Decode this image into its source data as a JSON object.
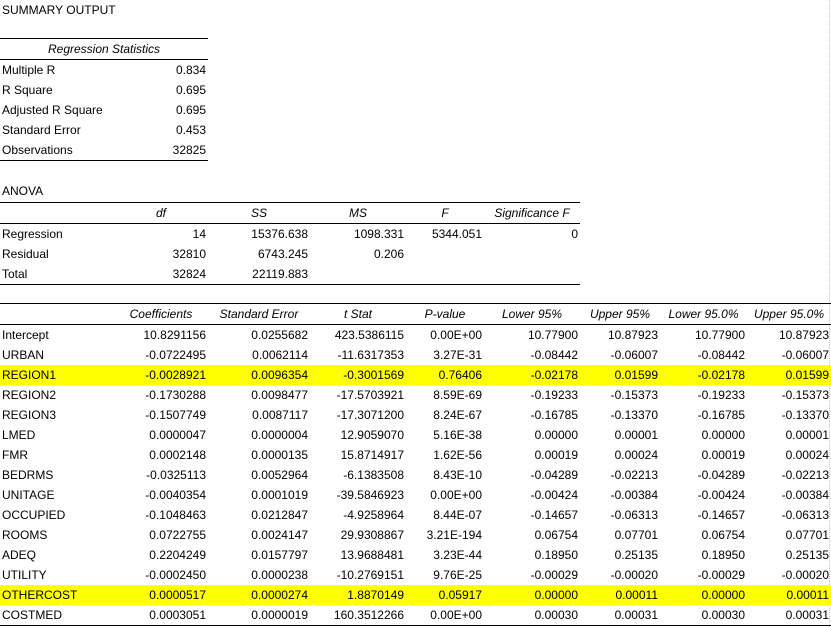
{
  "title": "SUMMARY OUTPUT",
  "regression_statistics": {
    "header": "Regression Statistics",
    "rows": [
      {
        "label": "Multiple R",
        "value": "0.834"
      },
      {
        "label": "R Square",
        "value": "0.695"
      },
      {
        "label": "Adjusted R Square",
        "value": "0.695"
      },
      {
        "label": "Standard Error",
        "value": "0.453"
      },
      {
        "label": "Observations",
        "value": "32825"
      }
    ]
  },
  "anova": {
    "label": "ANOVA",
    "headers": [
      "",
      "df",
      "SS",
      "MS",
      "F",
      "Significance F"
    ],
    "rows": [
      [
        "Regression",
        "14",
        "15376.638",
        "1098.331",
        "5344.051",
        "0"
      ],
      [
        "Residual",
        "32810",
        "6743.245",
        "0.206",
        "",
        ""
      ],
      [
        "Total",
        "32824",
        "22119.883",
        "",
        "",
        ""
      ]
    ]
  },
  "coefficients": {
    "headers": [
      "",
      "Coefficients",
      "Standard Error",
      "t Stat",
      "P-value",
      "Lower 95%",
      "Upper 95%",
      "Lower 95.0%",
      "Upper 95.0%"
    ],
    "rows": [
      {
        "cells": [
          "Intercept",
          "10.8291156",
          "0.0255682",
          "423.5386115",
          "0.00E+00",
          "10.77900",
          "10.87923",
          "10.77900",
          "10.87923"
        ],
        "highlight": false
      },
      {
        "cells": [
          "URBAN",
          "-0.0722495",
          "0.0062114",
          "-11.6317353",
          "3.27E-31",
          "-0.08442",
          "-0.06007",
          "-0.08442",
          "-0.06007"
        ],
        "highlight": false
      },
      {
        "cells": [
          "REGION1",
          "-0.0028921",
          "0.0096354",
          "-0.3001569",
          "0.76406",
          "-0.02178",
          "0.01599",
          "-0.02178",
          "0.01599"
        ],
        "highlight": true
      },
      {
        "cells": [
          "REGION2",
          "-0.1730288",
          "0.0098477",
          "-17.5703921",
          "8.59E-69",
          "-0.19233",
          "-0.15373",
          "-0.19233",
          "-0.15373"
        ],
        "highlight": false
      },
      {
        "cells": [
          "REGION3",
          "-0.1507749",
          "0.0087117",
          "-17.3071200",
          "8.24E-67",
          "-0.16785",
          "-0.13370",
          "-0.16785",
          "-0.13370"
        ],
        "highlight": false
      },
      {
        "cells": [
          "LMED",
          "0.0000047",
          "0.0000004",
          "12.9059070",
          "5.16E-38",
          "0.00000",
          "0.00001",
          "0.00000",
          "0.00001"
        ],
        "highlight": false
      },
      {
        "cells": [
          "FMR",
          "0.0002148",
          "0.0000135",
          "15.8714917",
          "1.62E-56",
          "0.00019",
          "0.00024",
          "0.00019",
          "0.00024"
        ],
        "highlight": false
      },
      {
        "cells": [
          "BEDRMS",
          "-0.0325113",
          "0.0052964",
          "-6.1383508",
          "8.43E-10",
          "-0.04289",
          "-0.02213",
          "-0.04289",
          "-0.02213"
        ],
        "highlight": false
      },
      {
        "cells": [
          "UNITAGE",
          "-0.0040354",
          "0.0001019",
          "-39.5846923",
          "0.00E+00",
          "-0.00424",
          "-0.00384",
          "-0.00424",
          "-0.00384"
        ],
        "highlight": false
      },
      {
        "cells": [
          "OCCUPIED",
          "-0.1048463",
          "0.0212847",
          "-4.9258964",
          "8.44E-07",
          "-0.14657",
          "-0.06313",
          "-0.14657",
          "-0.06313"
        ],
        "highlight": false
      },
      {
        "cells": [
          "ROOMS",
          "0.0722755",
          "0.0024147",
          "29.9308867",
          "3.21E-194",
          "0.06754",
          "0.07701",
          "0.06754",
          "0.07701"
        ],
        "highlight": false
      },
      {
        "cells": [
          "ADEQ",
          "0.2204249",
          "0.0157797",
          "13.9688481",
          "3.23E-44",
          "0.18950",
          "0.25135",
          "0.18950",
          "0.25135"
        ],
        "highlight": false
      },
      {
        "cells": [
          "UTILITY",
          "-0.0002450",
          "0.0000238",
          "-10.2769151",
          "9.76E-25",
          "-0.00029",
          "-0.00020",
          "-0.00029",
          "-0.00020"
        ],
        "highlight": false
      },
      {
        "cells": [
          "OTHERCOST",
          "0.0000517",
          "0.0000274",
          "1.8870149",
          "0.05917",
          "0.00000",
          "0.00011",
          "0.00000",
          "0.00011"
        ],
        "highlight": true
      },
      {
        "cells": [
          "COSTMED",
          "0.0003051",
          "0.0000019",
          "160.3512266",
          "0.00E+00",
          "0.00030",
          "0.00031",
          "0.00030",
          "0.00031"
        ],
        "highlight": false
      }
    ]
  },
  "colors": {
    "highlight": "#ffff00",
    "rule": "#000000"
  }
}
